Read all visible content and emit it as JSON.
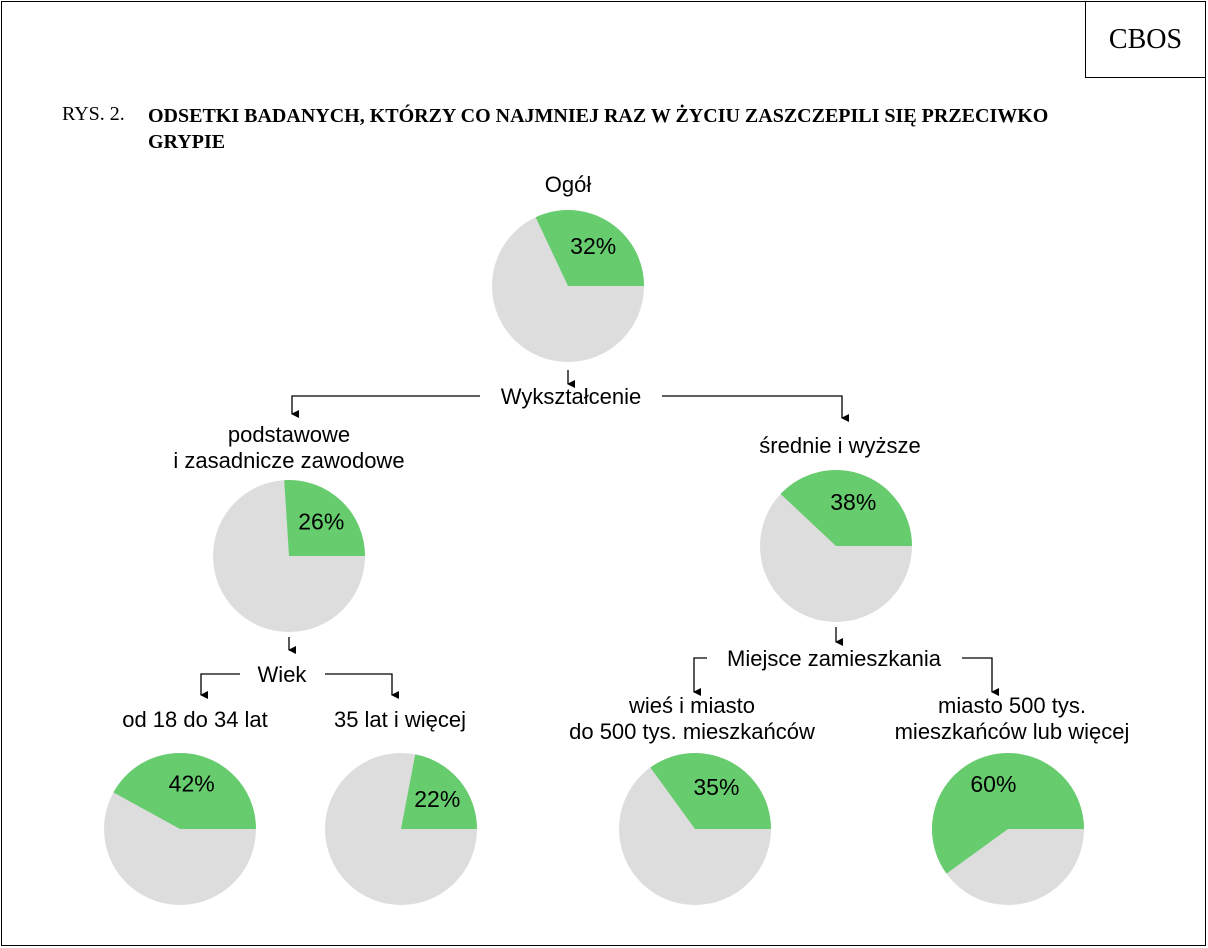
{
  "header": {
    "brand": "CBOS",
    "figure_label": "RYS. 2.",
    "figure_title": "ODSETKI BADANYCH, KTÓRZY CO NAJMNIEJ RAZ W ŻYCIU ZASZCZEPILI SIĘ PRZECIWKO GRYPIE"
  },
  "tree": {
    "split_education": "Wykształcenie",
    "split_age": "Wiek",
    "split_residence": "Miejsce zamieszkania"
  },
  "chart_data": {
    "type": "pie",
    "title": "ODSETKI BADANYCH, KTÓRZY CO NAJMNIEJ RAZ W ŻYCIU ZASZCZEPILI SIĘ PRZECIWKO GRYPIE",
    "unit": "%",
    "colors": {
      "yes": "#66cc6e",
      "rest": "#dddddd"
    },
    "pies": [
      {
        "id": "ogol",
        "label": [
          "Ogół"
        ],
        "value": 32,
        "value_label": "32%"
      },
      {
        "id": "edu-basic",
        "label": [
          "podstawowe",
          "i zasadnicze zawodowe"
        ],
        "value": 26,
        "value_label": "26%"
      },
      {
        "id": "edu-higher",
        "label": [
          "średnie i wyższe"
        ],
        "value": 38,
        "value_label": "38%"
      },
      {
        "id": "age-18-34",
        "label": [
          "od 18 do 34 lat"
        ],
        "value": 42,
        "value_label": "42%"
      },
      {
        "id": "age-35-plus",
        "label": [
          "35 lat i więcej"
        ],
        "value": 22,
        "value_label": "22%"
      },
      {
        "id": "res-small",
        "label": [
          "wieś i miasto",
          "do 500 tys. mieszkańców"
        ],
        "value": 35,
        "value_label": "35%"
      },
      {
        "id": "res-big",
        "label": [
          "miasto 500 tys.",
          "mieszkańców lub więcej"
        ],
        "value": 60,
        "value_label": "60%"
      }
    ]
  }
}
